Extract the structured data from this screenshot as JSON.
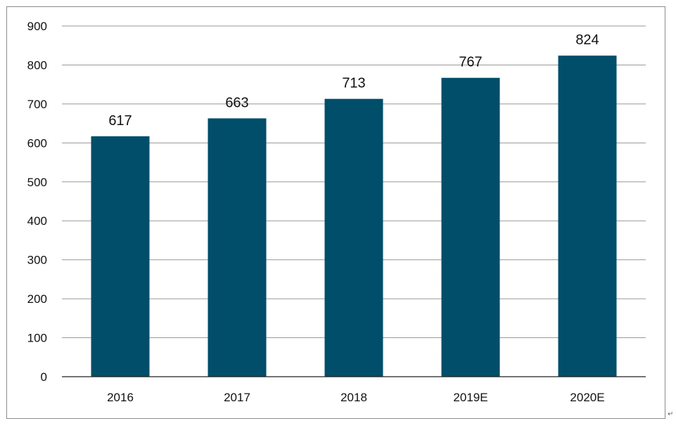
{
  "chart_data": {
    "type": "bar",
    "categories": [
      "2016",
      "2017",
      "2018",
      "2019E",
      "2020E"
    ],
    "values": [
      617,
      663,
      713,
      767,
      824
    ],
    "data_labels": [
      "617",
      "663",
      "713",
      "767",
      "824"
    ],
    "y_ticks": [
      "0",
      "100",
      "200",
      "300",
      "400",
      "500",
      "600",
      "700",
      "800",
      "900"
    ],
    "ylim": [
      0,
      900
    ],
    "grid": true,
    "bar_color": "#004e6a",
    "grid_color": "#999999"
  },
  "corner_mark": "↵"
}
